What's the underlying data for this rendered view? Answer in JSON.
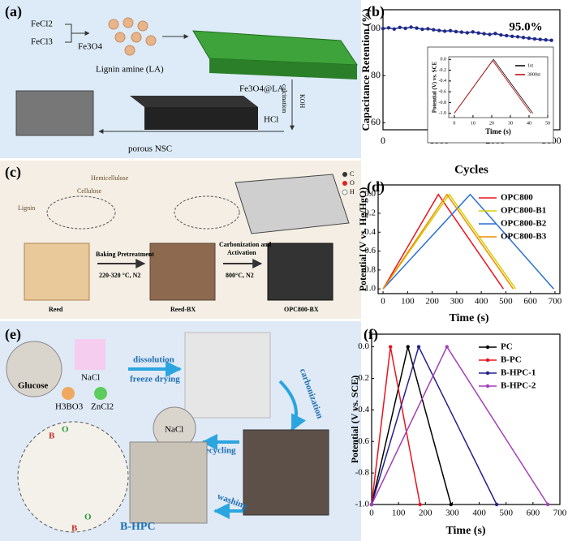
{
  "panel_a": {
    "label": "(a)",
    "reagent_1": "FeCl2",
    "reagent_2": "FeCl3",
    "product": "Fe3O4",
    "ligand": "Lignin amine (LA)",
    "composite": "Fe3O4@LA",
    "step_1": "KOH",
    "step_2": "calcination",
    "step_3": "HCl",
    "result": "porous NSC"
  },
  "panel_c": {
    "label": "(c)",
    "hemicellulose": "Hemicellulose",
    "cellulose": "Cellulose",
    "lignin": "Lignin",
    "step_1": "Baking Pretreatment",
    "step_1_cond": "220-320 °C, N2",
    "step_2a": "Carbonization and",
    "step_2b": "Activation",
    "step_2_cond": "800°C, N2",
    "stage_1": "Reed",
    "stage_2": "Reed-BX",
    "stage_3": "OPC800-BX",
    "legend": [
      "C",
      "O",
      "H"
    ]
  },
  "panel_e": {
    "label": "(e)",
    "glucose": "Glucose",
    "nacl": "NaCl",
    "boric": "H3BO3",
    "zncl": "ZnCl2",
    "step_1": "dissolution",
    "step_2": "freeze drying",
    "step_3": "carbonization",
    "step_4": "recycling",
    "step_5": "washing",
    "nacl_2": "NaCl",
    "product": "B-HPC",
    "atoms": [
      "B",
      "O",
      "B",
      "O"
    ]
  },
  "chart_data": [
    {
      "type": "line",
      "panel_label": "(b)",
      "xlabel": "Cycles",
      "ylabel": "Capacitance Retention (%)",
      "annotation": "95.0%",
      "xlim": [
        0,
        3150
      ],
      "xticks": [
        0,
        1000,
        2000,
        3000
      ],
      "ylim": [
        57,
        108
      ],
      "yticks": [
        60,
        80,
        100
      ],
      "series": [
        {
          "color": "#1f2a8a",
          "marker": true,
          "x": [
            0,
            100,
            200,
            300,
            400,
            500,
            600,
            700,
            800,
            900,
            1000,
            1100,
            1200,
            1300,
            1400,
            1500,
            1600,
            1700,
            1800,
            1900,
            2000,
            2100,
            2200,
            2300,
            2400,
            2500,
            2600,
            2700,
            2800,
            2900,
            3000
          ],
          "values": [
            100.0,
            100.3,
            99.8,
            100.5,
            100.1,
            100.6,
            100.2,
            99.7,
            99.9,
            99.5,
            99.2,
            98.9,
            99.1,
            98.7,
            98.5,
            98.2,
            98.6,
            98.1,
            97.8,
            97.5,
            97.9,
            97.3,
            97.0,
            96.7,
            96.5,
            96.2,
            95.9,
            95.6,
            95.4,
            95.2,
            95.0
          ]
        }
      ]
    },
    {
      "type": "line",
      "xlabel": "Time (s)",
      "ylabel": "Potential (V) vs. SCE",
      "xlim": [
        -3,
        50
      ],
      "xticks": [
        0,
        10,
        20,
        30,
        40,
        50
      ],
      "ylim": [
        -1.08,
        0.05
      ],
      "yticks": [
        {
          "value": -1,
          "label": "-1.0"
        },
        -0.8,
        -0.6,
        -0.4,
        -0.2,
        {
          "value": 0,
          "label": "0.0"
        }
      ],
      "legend": "upper-right",
      "series": [
        {
          "name": "1st",
          "color": "#000000",
          "x": [
            0,
            21,
            42
          ],
          "values": [
            -1,
            0,
            -1
          ]
        },
        {
          "name": "3000st",
          "color": "#c00000",
          "x": [
            0,
            20.5,
            41
          ],
          "values": [
            -1,
            -0.02,
            -1
          ]
        }
      ]
    },
    {
      "type": "line",
      "panel_label": "(d)",
      "xlabel": "Time (s)",
      "ylabel": "Potential   (V vs. Hg/HgO)",
      "xlim": [
        -20,
        720
      ],
      "xticks": [
        0,
        100,
        200,
        300,
        400,
        500,
        600,
        700
      ],
      "ylim": [
        -1.05,
        0.1
      ],
      "yticks": [
        {
          "value": -1,
          "label": "-1.0"
        },
        -0.8,
        -0.6,
        -0.4,
        -0.2,
        {
          "value": 0,
          "label": "0.0"
        }
      ],
      "legend": "upper-right",
      "series": [
        {
          "name": "OPC800",
          "color": "#e8141e",
          "x": [
            0,
            225,
            490
          ],
          "values": [
            -1,
            0,
            -1
          ]
        },
        {
          "name": "OPC800-B1",
          "color": "#d4d000",
          "x": [
            0,
            270,
            540
          ],
          "values": [
            -1,
            0,
            -1
          ]
        },
        {
          "name": "OPC800-B2",
          "color": "#2a6fd6",
          "x": [
            0,
            355,
            695
          ],
          "values": [
            -1,
            0,
            -1
          ]
        },
        {
          "name": "OPC800-B3",
          "color": "#f08c00",
          "x": [
            0,
            260,
            530
          ],
          "values": [
            -1,
            0,
            -1
          ]
        }
      ]
    },
    {
      "type": "line",
      "panel_label": "(f)",
      "xlabel": "Time (s)",
      "ylabel": "Potential (V vs. SCE)",
      "xlim": [
        0,
        700
      ],
      "xticks": [
        0,
        100,
        200,
        300,
        400,
        500,
        600,
        700
      ],
      "ylim": [
        -1,
        0.08
      ],
      "yticks": [
        {
          "value": -1,
          "label": "-1.0"
        },
        -0.8,
        -0.6,
        -0.4,
        -0.2,
        {
          "value": 0,
          "label": "0.0"
        }
      ],
      "legend": "upper-right",
      "series": [
        {
          "name": "PC",
          "color": "#000000",
          "marker": true,
          "x": [
            0,
            135,
            295
          ],
          "values": [
            -1,
            0,
            -1
          ]
        },
        {
          "name": "B-PC",
          "color": "#e8141e",
          "marker": true,
          "x": [
            0,
            70,
            180
          ],
          "values": [
            -1,
            0,
            -1
          ]
        },
        {
          "name": "B-HPC-1",
          "color": "#24208f",
          "marker": true,
          "x": [
            0,
            175,
            465
          ],
          "values": [
            -1,
            0,
            -1
          ]
        },
        {
          "name": "B-HPC-2",
          "color": "#a43fb8",
          "marker": true,
          "x": [
            0,
            280,
            655
          ],
          "values": [
            -1,
            0,
            -1
          ]
        }
      ]
    }
  ]
}
